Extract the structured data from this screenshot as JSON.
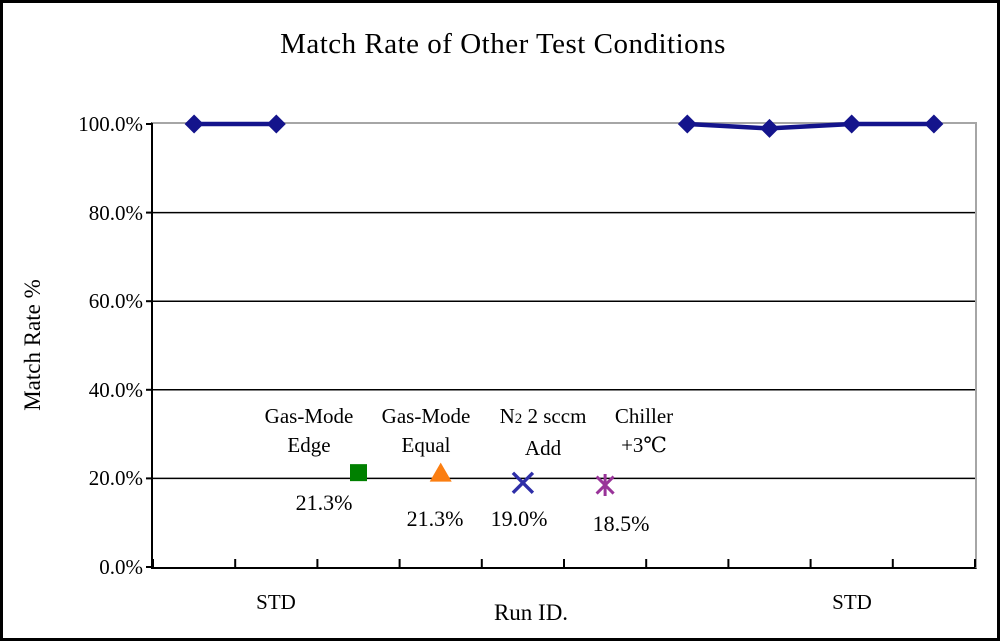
{
  "chart_data": {
    "type": "line",
    "title": "Match Rate of Other Test Conditions",
    "xlabel": "Run ID.",
    "ylabel": "Match Rate %",
    "ylim": [
      0,
      100
    ],
    "grid": "horizontal gridlines every 20%",
    "legend": "none",
    "n_categories": 10,
    "yaxis_ticks": [
      {
        "label": "100.0%",
        "value": 100
      },
      {
        "label": "80.0%",
        "value": 80
      },
      {
        "label": "60.0%",
        "value": 60
      },
      {
        "label": "40.0%",
        "value": 40
      },
      {
        "label": "20.0%",
        "value": 20
      },
      {
        "label": "0.0%",
        "value": 0
      }
    ],
    "xaxis_labels": [
      {
        "text": "STD",
        "category": 1
      },
      {
        "text": "STD",
        "category": 8
      }
    ],
    "series": [
      {
        "name": "STD runs",
        "type": "line",
        "marker": "diamond",
        "color": "#14148C",
        "values": [
          100,
          100,
          null,
          null,
          null,
          null,
          100,
          99,
          100,
          100
        ]
      }
    ],
    "points": [
      {
        "condition": "Gas-Mode Edge",
        "category": 2,
        "value": 21.3,
        "value_label": "21.3%",
        "marker": "square",
        "color": "#008000",
        "name_line1": "Gas-Mode",
        "name_line2": "Edge"
      },
      {
        "condition": "Gas-Mode Equal",
        "category": 3,
        "value": 21.3,
        "value_label": "21.3%",
        "marker": "triangle",
        "color": "#FB7E11",
        "name_line1": "Gas-Mode",
        "name_line2": "Equal"
      },
      {
        "condition": "N2 2 sccm Add",
        "category": 4,
        "value": 19.0,
        "value_label": "19.0%",
        "marker": "x",
        "color": "#2E2EA8",
        "name_line1_pre": "N",
        "name_line1_sub": "2",
        "name_line1_post": " 2 sccm",
        "name_line2": "Add"
      },
      {
        "condition": "Chiller +3℃",
        "category": 5,
        "value": 18.5,
        "value_label": "18.5%",
        "marker": "asterisk",
        "color": "#993399",
        "name_line1": "Chiller",
        "name_line2": "+3℃"
      }
    ],
    "colors": {
      "plot_border_top_right": "#A6A6A6",
      "axis_black": "#000000",
      "background": "#FFFFFF"
    }
  }
}
